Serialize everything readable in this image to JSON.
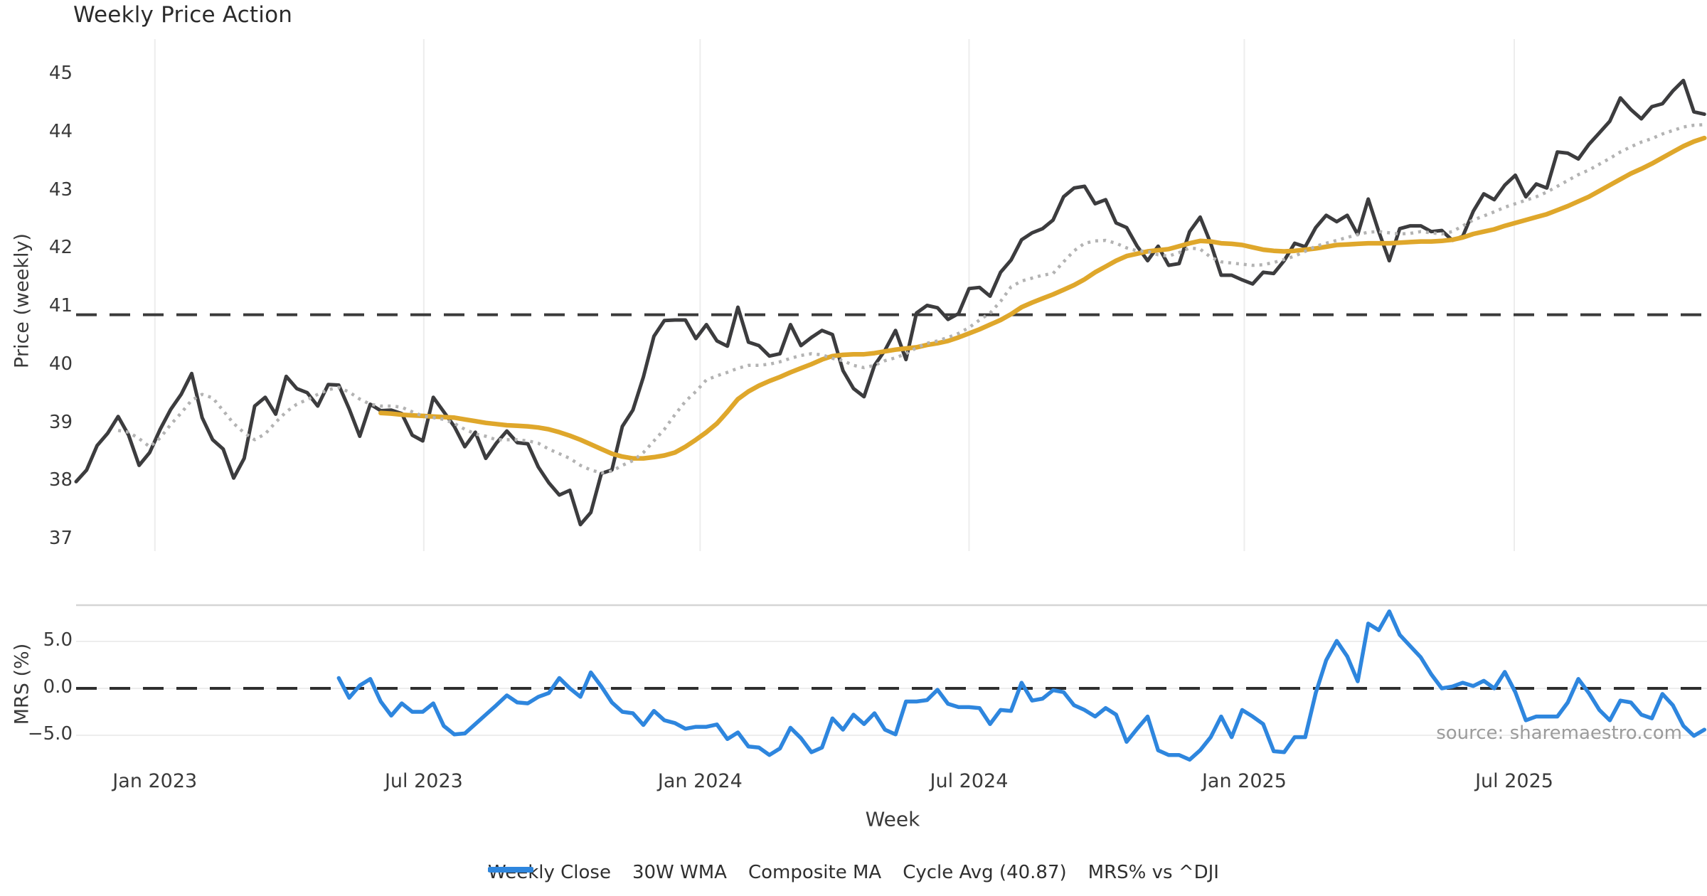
{
  "title": "Weekly Price Action",
  "source_note": "source: sharemaestro.com",
  "colors": {
    "close": "#3c3c3e",
    "wma": "#dfa72b",
    "composite": "#b3b3b3",
    "cycle_avg": "#3a3a3a",
    "mrs": "#2e86de",
    "zero_line": "#2f2f2f",
    "grid": "#ededed",
    "panel_border": "#d5d5d5",
    "tick_text": "#3a3a3a",
    "source_text": "#9b9b9b"
  },
  "chart_data": {
    "type": "line",
    "xlabel": "Week",
    "weeks_total": 156,
    "xticks": [
      {
        "label": "Jan 2023",
        "week": 7.5
      },
      {
        "label": "Jul 2023",
        "week": 33.1
      },
      {
        "label": "Jan 2024",
        "week": 59.4
      },
      {
        "label": "Jul 2024",
        "week": 85.0
      },
      {
        "label": "Jan 2025",
        "week": 111.2
      },
      {
        "label": "Jul 2025",
        "week": 136.9
      }
    ],
    "legend": [
      {
        "label": "Weekly Close",
        "style": "solid",
        "color_key": "close",
        "width": 6
      },
      {
        "label": "30W WMA",
        "style": "solid",
        "color_key": "wma",
        "width": 7
      },
      {
        "label": "Composite MA",
        "style": "dotted",
        "color_key": "composite",
        "width": 4.5
      },
      {
        "label": "Cycle Avg (40.87)",
        "style": "dashed",
        "color_key": "cycle_avg",
        "width": 4
      },
      {
        "label": "MRS% vs ^DJI",
        "style": "solid",
        "color_key": "mrs",
        "width": 7
      }
    ],
    "panels": [
      {
        "name": "price",
        "ylabel": "Price (weekly)",
        "ylim": [
          36.8,
          45.67
        ],
        "yticks": [
          {
            "v": 45,
            "label": "45"
          },
          {
            "v": 44,
            "label": "44"
          },
          {
            "v": 43,
            "label": "43"
          },
          {
            "v": 42,
            "label": "42"
          },
          {
            "v": 41,
            "label": "41"
          },
          {
            "v": 40,
            "label": "40"
          },
          {
            "v": 39,
            "label": "39"
          },
          {
            "v": 38,
            "label": "38"
          },
          {
            "v": 37,
            "label": "37"
          }
        ],
        "grid": "vertical",
        "cycle_avg": 40.87
      },
      {
        "name": "mrs",
        "ylabel": "MRS (%)",
        "ylim": [
          -8.1,
          8.86
        ],
        "yticks": [
          {
            "v": 5,
            "label": "5.0"
          },
          {
            "v": 0,
            "label": "0.0"
          },
          {
            "v": -5,
            "label": "−5.0"
          }
        ],
        "grid": "horizontal",
        "zero_line": 0
      }
    ],
    "series": [
      {
        "name": "Weekly Close",
        "panel": "price",
        "color_key": "close",
        "style": "solid",
        "width": 5,
        "values": [
          38.0,
          38.2,
          38.62,
          38.83,
          39.12,
          38.8,
          38.28,
          38.5,
          38.9,
          39.24,
          39.5,
          39.86,
          39.1,
          38.72,
          38.56,
          38.06,
          38.4,
          39.3,
          39.45,
          39.16,
          39.81,
          39.6,
          39.53,
          39.3,
          39.67,
          39.66,
          39.25,
          38.78,
          39.33,
          39.22,
          39.23,
          39.17,
          38.8,
          38.7,
          39.45,
          39.2,
          38.95,
          38.6,
          38.85,
          38.4,
          38.66,
          38.87,
          38.67,
          38.65,
          38.25,
          37.98,
          37.77,
          37.85,
          37.26,
          37.47,
          38.14,
          38.2,
          38.95,
          39.23,
          39.8,
          40.5,
          40.77,
          40.78,
          40.78,
          40.46,
          40.7,
          40.42,
          40.33,
          41.0,
          40.4,
          40.34,
          40.16,
          40.2,
          40.7,
          40.34,
          40.48,
          40.6,
          40.53,
          39.91,
          39.6,
          39.46,
          40.0,
          40.26,
          40.6,
          40.1,
          40.9,
          41.03,
          40.99,
          40.79,
          40.89,
          41.32,
          41.34,
          41.19,
          41.6,
          41.81,
          42.16,
          42.28,
          42.35,
          42.5,
          42.9,
          43.05,
          43.08,
          42.78,
          42.85,
          42.45,
          42.37,
          42.05,
          41.8,
          42.05,
          41.72,
          41.75,
          42.3,
          42.55,
          42.1,
          41.55,
          41.55,
          41.47,
          41.4,
          41.6,
          41.58,
          41.8,
          42.1,
          42.04,
          42.37,
          42.58,
          42.47,
          42.58,
          42.25,
          42.86,
          42.3,
          41.8,
          42.35,
          42.4,
          42.4,
          42.3,
          42.32,
          42.15,
          42.22,
          42.65,
          42.95,
          42.85,
          43.1,
          43.27,
          42.9,
          43.12,
          43.05,
          43.67,
          43.65,
          43.55,
          43.8,
          44.0,
          44.2,
          44.6,
          44.4,
          44.24,
          44.45,
          44.5,
          44.72,
          44.9,
          44.36,
          44.32
        ]
      },
      {
        "name": "30W WMA",
        "panel": "price",
        "color_key": "wma",
        "style": "solid",
        "width": 6.5,
        "values": [
          null,
          null,
          null,
          null,
          null,
          null,
          null,
          null,
          null,
          null,
          null,
          null,
          null,
          null,
          null,
          null,
          null,
          null,
          null,
          null,
          null,
          null,
          null,
          null,
          null,
          null,
          null,
          null,
          null,
          39.18,
          39.17,
          39.15,
          39.14,
          39.13,
          39.12,
          39.11,
          39.1,
          39.07,
          39.04,
          39.01,
          38.99,
          38.97,
          38.96,
          38.95,
          38.93,
          38.9,
          38.85,
          38.79,
          38.72,
          38.64,
          38.56,
          38.48,
          38.43,
          38.4,
          38.4,
          38.42,
          38.45,
          38.5,
          38.6,
          38.72,
          38.85,
          39.0,
          39.2,
          39.42,
          39.55,
          39.65,
          39.73,
          39.8,
          39.88,
          39.95,
          40.02,
          40.1,
          40.16,
          40.18,
          40.19,
          40.19,
          40.21,
          40.24,
          40.27,
          40.29,
          40.31,
          40.35,
          40.38,
          40.42,
          40.48,
          40.55,
          40.62,
          40.7,
          40.78,
          40.88,
          41.0,
          41.08,
          41.15,
          41.22,
          41.3,
          41.38,
          41.48,
          41.6,
          41.7,
          41.8,
          41.88,
          41.92,
          41.96,
          41.98,
          42.0,
          42.05,
          42.1,
          42.14,
          42.13,
          42.1,
          42.09,
          42.07,
          42.03,
          41.99,
          41.97,
          41.96,
          41.97,
          41.99,
          42.01,
          42.04,
          42.07,
          42.08,
          42.09,
          42.1,
          42.1,
          42.1,
          42.11,
          42.12,
          42.13,
          42.13,
          42.14,
          42.16,
          42.2,
          42.26,
          42.3,
          42.34,
          42.4,
          42.45,
          42.5,
          42.55,
          42.6,
          42.67,
          42.74,
          42.82,
          42.9,
          43.0,
          43.1,
          43.2,
          43.3,
          43.38,
          43.47,
          43.57,
          43.67,
          43.77,
          43.85,
          43.91
        ]
      },
      {
        "name": "Composite MA",
        "panel": "price",
        "color_key": "composite",
        "style": "dotted",
        "width": 4.5,
        "values": [
          null,
          null,
          null,
          null,
          38.88,
          38.85,
          38.74,
          38.6,
          38.75,
          38.98,
          39.18,
          39.4,
          39.5,
          39.44,
          39.22,
          39.0,
          38.84,
          38.72,
          38.82,
          39.02,
          39.2,
          39.33,
          39.41,
          39.5,
          39.58,
          39.62,
          39.54,
          39.42,
          39.33,
          39.3,
          39.3,
          39.28,
          39.2,
          39.13,
          39.1,
          39.07,
          39.0,
          38.9,
          38.82,
          38.78,
          38.72,
          38.72,
          38.72,
          38.7,
          38.66,
          38.56,
          38.48,
          38.4,
          38.28,
          38.2,
          38.15,
          38.18,
          38.28,
          38.36,
          38.5,
          38.7,
          38.9,
          39.15,
          39.38,
          39.55,
          39.75,
          39.82,
          39.88,
          39.95,
          40.0,
          40.0,
          40.02,
          40.06,
          40.12,
          40.17,
          40.2,
          40.18,
          40.12,
          40.08,
          40.0,
          39.96,
          40.0,
          40.08,
          40.13,
          40.2,
          40.3,
          40.38,
          40.42,
          40.48,
          40.55,
          40.65,
          40.78,
          40.9,
          41.1,
          41.35,
          41.45,
          41.5,
          41.55,
          41.58,
          41.78,
          41.97,
          42.1,
          42.14,
          42.15,
          42.1,
          42.02,
          41.97,
          41.96,
          41.9,
          41.88,
          41.94,
          42.02,
          42.0,
          41.86,
          41.78,
          41.76,
          41.74,
          41.72,
          41.73,
          41.77,
          41.82,
          41.88,
          41.96,
          42.05,
          42.1,
          42.15,
          42.2,
          42.25,
          42.29,
          42.3,
          42.28,
          42.26,
          42.27,
          42.3,
          42.28,
          42.26,
          42.3,
          42.4,
          42.5,
          42.57,
          42.64,
          42.72,
          42.78,
          42.84,
          42.9,
          42.98,
          43.08,
          43.18,
          43.28,
          43.36,
          43.46,
          43.56,
          43.67,
          43.76,
          43.84,
          43.9,
          43.98,
          44.04,
          44.1,
          44.13,
          44.14
        ]
      },
      {
        "name": "MRS% vs ^DJI",
        "panel": "mrs",
        "color_key": "mrs",
        "style": "solid",
        "width": 5.5,
        "values": [
          null,
          null,
          null,
          null,
          null,
          null,
          null,
          null,
          null,
          null,
          null,
          null,
          null,
          null,
          null,
          null,
          null,
          null,
          null,
          null,
          null,
          null,
          null,
          null,
          null,
          1.1,
          -1.0,
          0.3,
          1.0,
          -1.4,
          -2.9,
          -1.6,
          -2.5,
          -2.5,
          -1.6,
          -4.0,
          -4.9,
          -4.8,
          -3.8,
          -2.8,
          -1.8,
          -0.75,
          -1.5,
          -1.6,
          -0.9,
          -0.5,
          1.1,
          0.0,
          -0.9,
          1.7,
          0.2,
          -1.5,
          -2.5,
          -2.65,
          -3.9,
          -2.4,
          -3.4,
          -3.7,
          -4.3,
          -4.1,
          -4.1,
          -3.85,
          -5.4,
          -4.7,
          -6.2,
          -6.3,
          -7.1,
          -6.4,
          -4.2,
          -5.3,
          -6.8,
          -6.3,
          -3.2,
          -4.4,
          -2.8,
          -3.8,
          -2.65,
          -4.4,
          -4.9,
          -1.4,
          -1.4,
          -1.25,
          -0.15,
          -1.65,
          -2.0,
          -2.0,
          -2.1,
          -3.8,
          -2.3,
          -2.4,
          0.6,
          -1.3,
          -1.1,
          -0.2,
          -0.4,
          -1.8,
          -2.3,
          -3.0,
          -2.1,
          -2.8,
          -5.7,
          -4.3,
          -3.0,
          -6.6,
          -7.1,
          -7.1,
          -7.6,
          -6.6,
          -5.2,
          -3.0,
          -5.2,
          -2.3,
          -3.0,
          -3.8,
          -6.7,
          -6.8,
          -5.2,
          -5.2,
          -0.5,
          3.0,
          5.05,
          3.4,
          0.75,
          6.9,
          6.2,
          8.2,
          5.7,
          4.5,
          3.3,
          1.5,
          0.0,
          0.2,
          0.6,
          0.25,
          0.8,
          0.0,
          1.75,
          -0.4,
          -3.4,
          -3.0,
          -3.0,
          -3.0,
          -1.5,
          1.0,
          -0.5,
          -2.3,
          -3.4,
          -1.3,
          -1.5,
          -2.8,
          -3.2,
          -0.6,
          -1.8,
          -4.0,
          -5.05,
          -4.4
        ]
      }
    ]
  }
}
